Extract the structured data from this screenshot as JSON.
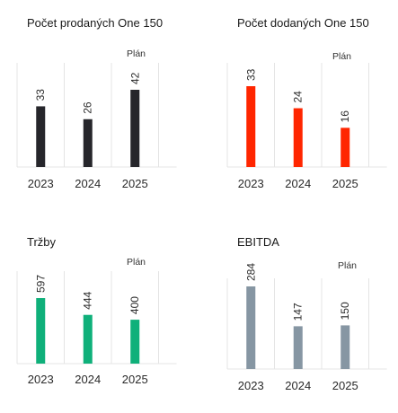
{
  "chart_data": [
    {
      "type": "bar",
      "title": "Počet prodaných One 150",
      "annotation": "Plán",
      "categories": [
        "2023",
        "2024",
        "2025"
      ],
      "values": [
        33,
        26,
        42
      ],
      "color": "#26262b",
      "ylim": [
        0,
        42
      ]
    },
    {
      "type": "bar",
      "title": "Počet dodaných One 150",
      "annotation": "Plán",
      "categories": [
        "2023",
        "2024",
        "2025"
      ],
      "values": [
        33,
        24,
        16
      ],
      "color": "#ff2600",
      "ylim": [
        0,
        33
      ]
    },
    {
      "type": "bar",
      "title": "Tržby",
      "annotation": "Plán",
      "categories": [
        "2023",
        "2024",
        "2025"
      ],
      "values": [
        597,
        444,
        400
      ],
      "color": "#0fb07a",
      "ylim": [
        0,
        597
      ]
    },
    {
      "type": "bar",
      "title": "EBITDA",
      "annotation": "Plán",
      "categories": [
        "2023",
        "2024",
        "2025"
      ],
      "values": [
        284,
        147,
        150
      ],
      "color": "#8696a3",
      "ylim": [
        0,
        284
      ]
    }
  ]
}
